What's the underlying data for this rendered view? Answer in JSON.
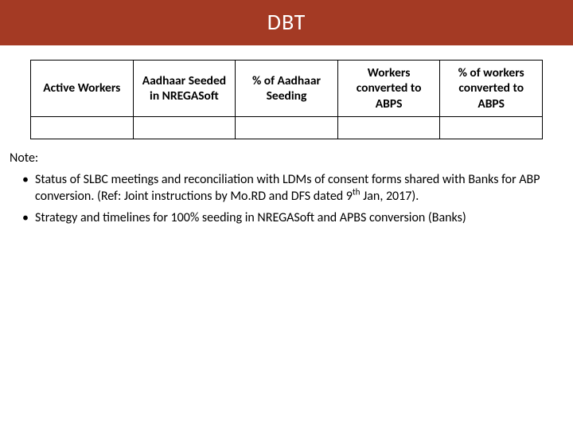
{
  "title": "DBT",
  "table": {
    "headers": [
      "Active Workers",
      "Aadhaar Seeded in NREGASoft",
      "% of Aadhaar Seeding",
      "Workers converted to ABPS",
      "% of workers converted to ABPS"
    ],
    "rows": [
      [
        "",
        "",
        "",
        "",
        ""
      ]
    ]
  },
  "note_label": "Note:",
  "bullets": [
    {
      "pre": "Status of SLBC meetings and reconciliation with LDMs of consent forms shared with Banks for ABP conversion. (Ref: Joint instructions by Mo.RD and DFS dated 9",
      "sup": "th",
      "post": " Jan, 2017)."
    },
    {
      "pre": "Strategy and timelines for 100% seeding in NREGASoft and APBS conversion (Banks)",
      "sup": "",
      "post": ""
    }
  ]
}
